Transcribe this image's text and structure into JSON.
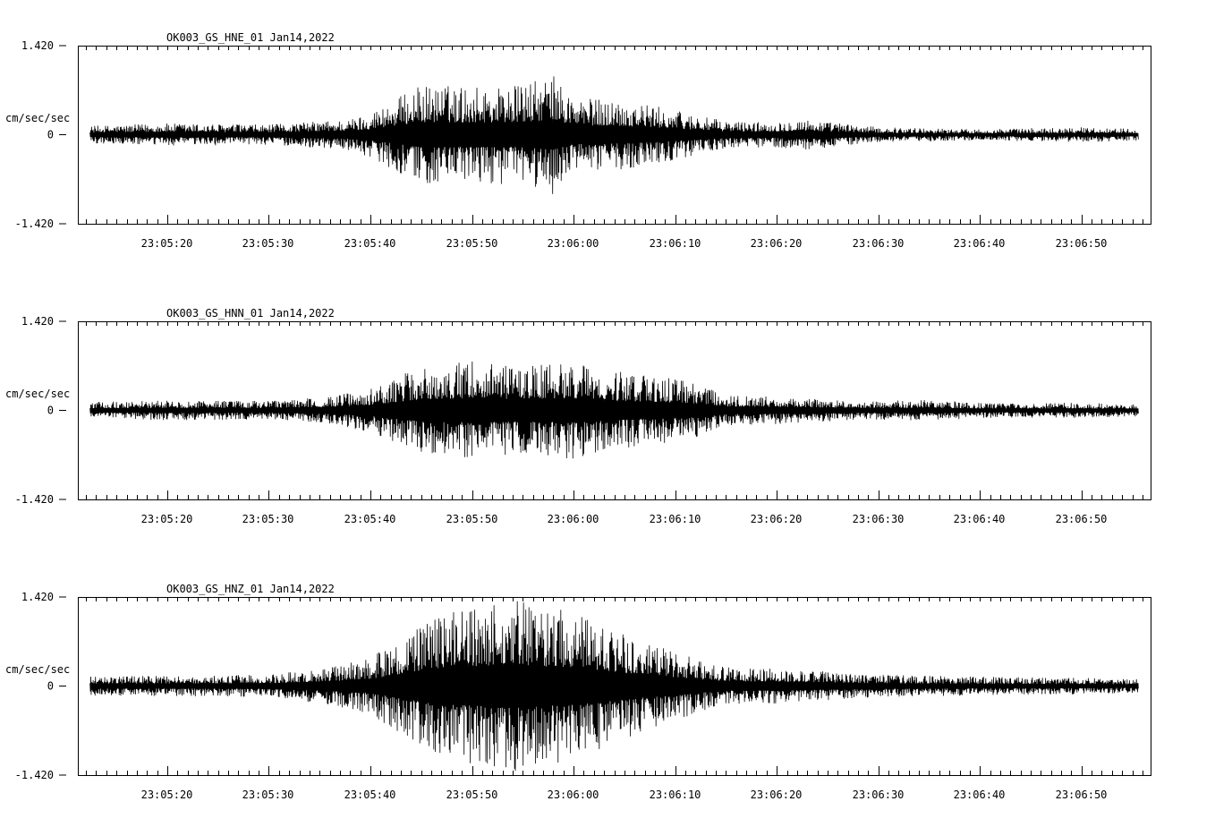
{
  "chart_data": [
    {
      "type": "line",
      "title": "OK003_GS_HNE_01  Jan14,2022",
      "ylabel": "cm/sec/sec",
      "ylim": [
        -1.42,
        1.42
      ],
      "yticks": [
        {
          "value": 1.42,
          "label": "1.420"
        },
        {
          "value": 0,
          "label": "0"
        },
        {
          "value": -1.42,
          "label": "-1.420"
        }
      ],
      "xlim": [
        "23:05:11.2",
        "23:06:56.8"
      ],
      "xticks": [
        "23:05:20",
        "23:05:30",
        "23:05:40",
        "23:05:50",
        "23:06:00",
        "23:06:10",
        "23:06:20",
        "23:06:30",
        "23:06:40",
        "23:06:50"
      ],
      "series": [
        {
          "x": [
            "23:05:12",
            "23:05:20",
            "23:05:30",
            "23:05:38",
            "23:05:40",
            "23:05:45",
            "23:05:50",
            "23:05:55",
            "23:05:58",
            "23:06:00",
            "23:06:05",
            "23:06:10",
            "23:06:13",
            "23:06:15",
            "23:06:20",
            "23:06:22",
            "23:06:30",
            "23:06:40",
            "23:06:50",
            "23:06:55"
          ],
          "values": [
            0.14,
            0.18,
            0.16,
            0.25,
            0.36,
            0.8,
            0.78,
            0.8,
            0.95,
            0.6,
            0.55,
            0.4,
            0.28,
            0.22,
            0.2,
            0.26,
            0.12,
            0.09,
            0.12,
            0.1
          ]
        }
      ]
    },
    {
      "type": "line",
      "title": "OK003_GS_HNN_01  Jan14,2022",
      "ylabel": "cm/sec/sec",
      "ylim": [
        -1.42,
        1.42
      ],
      "yticks": [
        {
          "value": 1.42,
          "label": "1.420"
        },
        {
          "value": 0,
          "label": "0"
        },
        {
          "value": -1.42,
          "label": "-1.420"
        }
      ],
      "xlim": [
        "23:05:11.2",
        "23:06:56.8"
      ],
      "xticks": [
        "23:05:20",
        "23:05:30",
        "23:05:40",
        "23:05:50",
        "23:06:00",
        "23:06:10",
        "23:06:20",
        "23:06:30",
        "23:06:40",
        "23:06:50"
      ],
      "series": [
        {
          "x": [
            "23:05:12",
            "23:05:20",
            "23:05:30",
            "23:05:36",
            "23:05:40",
            "23:05:45",
            "23:05:50",
            "23:05:55",
            "23:06:00",
            "23:06:05",
            "23:06:10",
            "23:06:13",
            "23:06:15",
            "23:06:20",
            "23:06:25",
            "23:06:30",
            "23:06:35",
            "23:06:40",
            "23:06:50",
            "23:06:55"
          ],
          "values": [
            0.13,
            0.16,
            0.15,
            0.22,
            0.35,
            0.7,
            0.78,
            0.7,
            0.78,
            0.6,
            0.5,
            0.4,
            0.25,
            0.22,
            0.18,
            0.15,
            0.17,
            0.12,
            0.12,
            0.1
          ]
        }
      ]
    },
    {
      "type": "line",
      "title": "OK003_GS_HNZ_01  Jan14,2022",
      "ylabel": "cm/sec/sec",
      "ylim": [
        -1.42,
        1.42
      ],
      "yticks": [
        {
          "value": 1.42,
          "label": "1.420"
        },
        {
          "value": 0,
          "label": "0"
        },
        {
          "value": -1.42,
          "label": "-1.420"
        }
      ],
      "xlim": [
        "23:05:11.2",
        "23:06:56.8"
      ],
      "xticks": [
        "23:05:20",
        "23:05:30",
        "23:05:40",
        "23:05:50",
        "23:06:00",
        "23:06:10",
        "23:06:20",
        "23:06:30",
        "23:06:40",
        "23:06:50"
      ],
      "series": [
        {
          "x": [
            "23:05:12",
            "23:05:20",
            "23:05:30",
            "23:05:36",
            "23:05:40",
            "23:05:45",
            "23:05:48",
            "23:05:52",
            "23:05:54",
            "23:05:57",
            "23:06:00",
            "23:06:05",
            "23:06:10",
            "23:06:13",
            "23:06:15",
            "23:06:20",
            "23:06:30",
            "23:06:40",
            "23:06:50",
            "23:06:55"
          ],
          "values": [
            0.16,
            0.16,
            0.18,
            0.3,
            0.45,
            1.0,
            1.2,
            1.3,
            1.38,
            1.25,
            1.2,
            0.85,
            0.55,
            0.4,
            0.3,
            0.28,
            0.18,
            0.15,
            0.13,
            0.11
          ]
        }
      ]
    }
  ]
}
